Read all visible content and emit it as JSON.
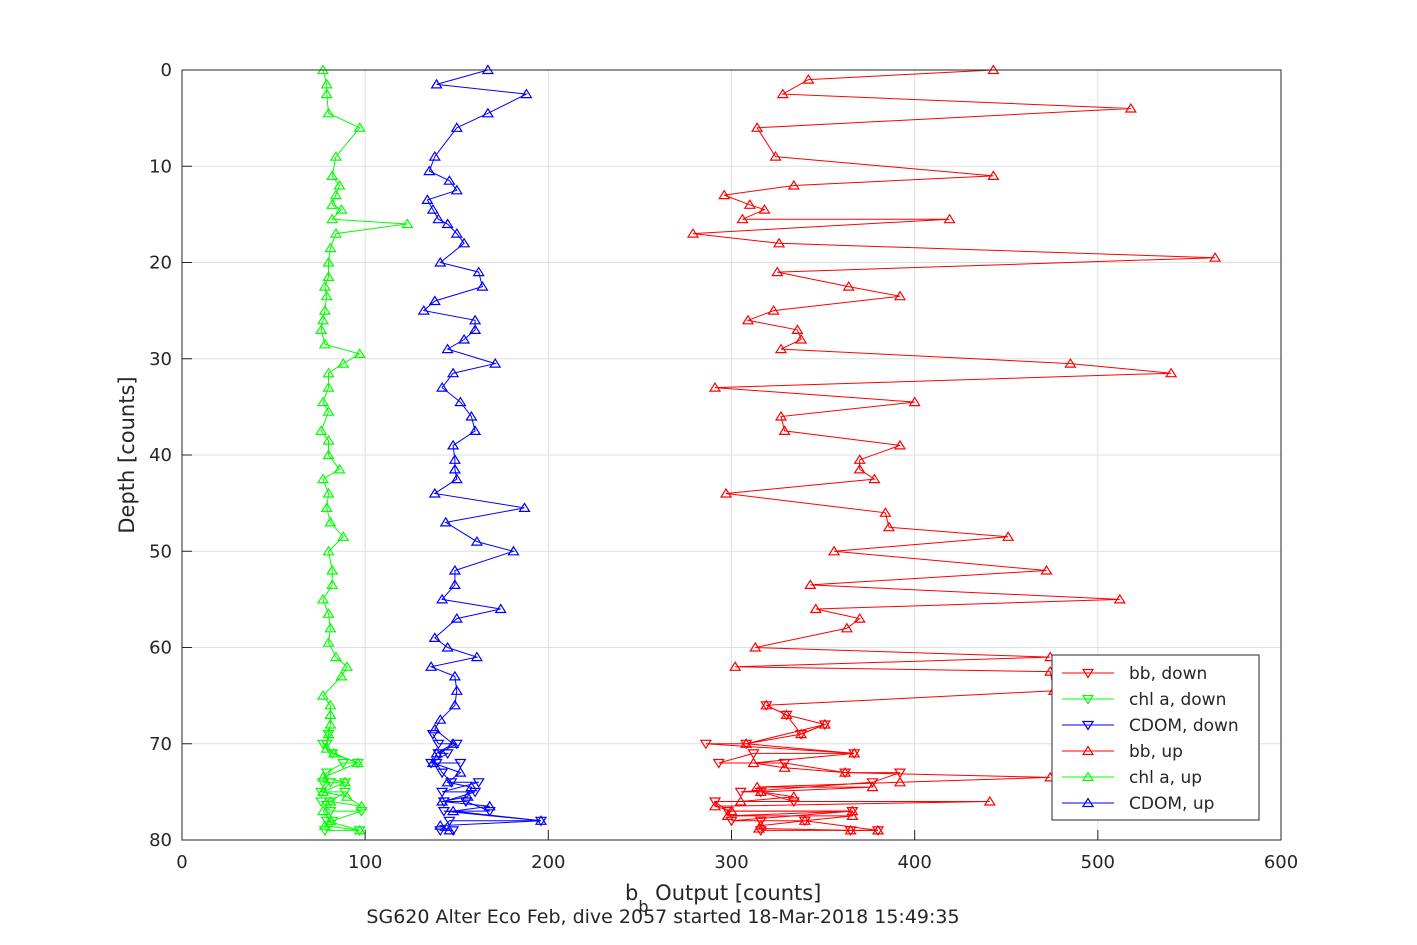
{
  "chart_data": {
    "type": "line",
    "xlabel_main": "b",
    "xlabel_sub": "b",
    "xlabel_rest": " Output [counts]",
    "ylabel": "Depth [counts]",
    "caption": "SG620 Alter Eco Feb, dive 2057 started 18-Mar-2018 15:49:35",
    "xlim": [
      0,
      600
    ],
    "ylim": [
      0,
      80
    ],
    "y_reversed": true,
    "grid": true,
    "legend_position": "bottom-right",
    "x_ticks": [
      "0",
      "100",
      "200",
      "300",
      "400",
      "500",
      "600"
    ],
    "y_ticks": [
      "0",
      "10",
      "20",
      "30",
      "40",
      "50",
      "60",
      "70",
      "80"
    ],
    "series": [
      {
        "name": "bb, down",
        "color": "#ff0000",
        "marker": "triangle-down",
        "points": [
          [
            316,
            79
          ],
          [
            365,
            79
          ],
          [
            380,
            79
          ],
          [
            340,
            78
          ],
          [
            316,
            78
          ],
          [
            300,
            78
          ],
          [
            366,
            77
          ],
          [
            298,
            77
          ],
          [
            291,
            76
          ],
          [
            334,
            76
          ],
          [
            316,
            75
          ],
          [
            305,
            75
          ],
          [
            377,
            74
          ],
          [
            392,
            73
          ],
          [
            362,
            73
          ],
          [
            329,
            72
          ],
          [
            293,
            72
          ],
          [
            312,
            71
          ],
          [
            367,
            71
          ],
          [
            286,
            70
          ],
          [
            308,
            70
          ],
          [
            351,
            68
          ],
          [
            338,
            69
          ],
          [
            330,
            67
          ],
          [
            319,
            66
          ]
        ]
      },
      {
        "name": "chl a, down",
        "color": "#00ff00",
        "marker": "triangle-down",
        "points": [
          [
            78,
            79
          ],
          [
            97,
            79
          ],
          [
            79,
            78
          ],
          [
            82,
            78
          ],
          [
            98,
            77
          ],
          [
            81,
            77
          ],
          [
            76,
            76
          ],
          [
            81,
            76
          ],
          [
            89,
            75
          ],
          [
            76,
            75
          ],
          [
            81,
            74
          ],
          [
            89,
            74
          ],
          [
            77,
            74
          ],
          [
            79,
            73
          ],
          [
            88,
            72
          ],
          [
            96,
            72
          ],
          [
            82,
            71
          ],
          [
            77,
            70
          ],
          [
            79,
            70
          ],
          [
            80,
            69
          ]
        ]
      },
      {
        "name": "CDOM, down",
        "color": "#0000ff",
        "marker": "triangle-down",
        "points": [
          [
            148,
            79
          ],
          [
            141,
            79
          ],
          [
            146,
            78
          ],
          [
            196,
            78
          ],
          [
            143,
            77
          ],
          [
            168,
            77
          ],
          [
            155,
            76
          ],
          [
            143,
            76
          ],
          [
            160,
            75
          ],
          [
            142,
            75
          ],
          [
            162,
            74
          ],
          [
            147,
            74
          ],
          [
            142,
            73
          ],
          [
            139,
            72
          ],
          [
            152,
            72
          ],
          [
            136,
            72
          ],
          [
            145,
            71
          ],
          [
            140,
            71
          ],
          [
            150,
            70
          ],
          [
            140,
            70
          ],
          [
            137,
            69
          ]
        ]
      },
      {
        "name": "bb, up",
        "color": "#ff0000",
        "marker": "triangle-up",
        "points": [
          [
            443,
            0
          ],
          [
            342,
            1
          ],
          [
            328,
            2.5
          ],
          [
            518,
            4
          ],
          [
            314,
            6
          ],
          [
            324,
            9
          ],
          [
            443,
            11
          ],
          [
            334,
            12
          ],
          [
            296,
            13
          ],
          [
            310,
            14
          ],
          [
            318,
            14.5
          ],
          [
            306,
            15.5
          ],
          [
            419,
            15.5
          ],
          [
            279,
            17
          ],
          [
            326,
            18
          ],
          [
            564,
            19.5
          ],
          [
            325,
            21
          ],
          [
            364,
            22.5
          ],
          [
            392,
            23.5
          ],
          [
            323,
            25
          ],
          [
            309,
            26
          ],
          [
            336,
            27
          ],
          [
            338,
            28
          ],
          [
            327,
            29
          ],
          [
            485,
            30.5
          ],
          [
            540,
            31.5
          ],
          [
            291,
            33
          ],
          [
            400,
            34.5
          ],
          [
            327,
            36
          ],
          [
            329,
            37.5
          ],
          [
            392,
            39
          ],
          [
            370,
            40.5
          ],
          [
            370,
            41.5
          ],
          [
            378,
            42.5
          ],
          [
            297,
            44
          ],
          [
            384,
            46
          ],
          [
            386,
            47.5
          ],
          [
            451,
            48.5
          ],
          [
            356,
            50
          ],
          [
            472,
            52
          ],
          [
            343,
            53.5
          ],
          [
            512,
            55
          ],
          [
            346,
            56
          ],
          [
            370,
            57
          ],
          [
            363,
            58
          ],
          [
            313,
            60
          ],
          [
            474,
            61
          ],
          [
            302,
            62
          ],
          [
            474,
            62.5
          ],
          [
            476,
            64.5
          ],
          [
            319,
            66
          ],
          [
            330,
            67
          ],
          [
            351,
            68
          ],
          [
            338,
            69
          ],
          [
            308,
            70
          ],
          [
            367,
            71
          ],
          [
            312,
            72
          ],
          [
            329,
            72.5
          ],
          [
            362,
            73
          ],
          [
            474,
            73.5
          ],
          [
            392,
            74
          ],
          [
            314,
            74.5
          ],
          [
            377,
            74.5
          ],
          [
            316,
            75
          ],
          [
            334,
            75.5
          ],
          [
            305,
            76
          ],
          [
            441,
            76
          ],
          [
            291,
            76.5
          ],
          [
            300,
            77
          ],
          [
            366,
            77
          ],
          [
            298,
            77.5
          ],
          [
            366,
            77.5
          ],
          [
            340,
            78
          ],
          [
            316,
            78.5
          ],
          [
            315,
            78.8
          ],
          [
            365,
            79
          ],
          [
            380,
            79
          ]
        ]
      },
      {
        "name": "chl a, up",
        "color": "#00ff00",
        "marker": "triangle-up",
        "points": [
          [
            77,
            0
          ],
          [
            79,
            1.5
          ],
          [
            79,
            2.5
          ],
          [
            80,
            4.5
          ],
          [
            97,
            6
          ],
          [
            84,
            9
          ],
          [
            82,
            11
          ],
          [
            86,
            12
          ],
          [
            84,
            13
          ],
          [
            82,
            14
          ],
          [
            87,
            14.5
          ],
          [
            82,
            15.5
          ],
          [
            123,
            16
          ],
          [
            84,
            17
          ],
          [
            81,
            18.5
          ],
          [
            80,
            20
          ],
          [
            80,
            21.5
          ],
          [
            78,
            22.5
          ],
          [
            79,
            23.5
          ],
          [
            78,
            25
          ],
          [
            77,
            26
          ],
          [
            76,
            27
          ],
          [
            78,
            28.5
          ],
          [
            97,
            29.5
          ],
          [
            88,
            30.5
          ],
          [
            80,
            31.5
          ],
          [
            80,
            33
          ],
          [
            77,
            34.5
          ],
          [
            80,
            35.5
          ],
          [
            76,
            37.5
          ],
          [
            80,
            38.5
          ],
          [
            80,
            40
          ],
          [
            86,
            41.5
          ],
          [
            77,
            42.5
          ],
          [
            80,
            44
          ],
          [
            79,
            45.5
          ],
          [
            81,
            47
          ],
          [
            88,
            48.5
          ],
          [
            80,
            50
          ],
          [
            82,
            52
          ],
          [
            82,
            53.5
          ],
          [
            77,
            55
          ],
          [
            80,
            56.5
          ],
          [
            81,
            58
          ],
          [
            80,
            59.5
          ],
          [
            84,
            61
          ],
          [
            90,
            62
          ],
          [
            87,
            63
          ],
          [
            77,
            65
          ],
          [
            81,
            66
          ],
          [
            81,
            67
          ],
          [
            81,
            68
          ],
          [
            80,
            69
          ],
          [
            79,
            70.5
          ],
          [
            83,
            71
          ],
          [
            96,
            72
          ],
          [
            77,
            73.5
          ],
          [
            89,
            74
          ],
          [
            77,
            75
          ],
          [
            90,
            75.5
          ],
          [
            98,
            76.5
          ],
          [
            81,
            76
          ],
          [
            77,
            77
          ],
          [
            81,
            78
          ],
          [
            78,
            78.5
          ],
          [
            97,
            79
          ]
        ]
      },
      {
        "name": "CDOM, up",
        "color": "#0000ff",
        "marker": "triangle-up",
        "points": [
          [
            167,
            0
          ],
          [
            139,
            1.5
          ],
          [
            188,
            2.5
          ],
          [
            167,
            4.5
          ],
          [
            150,
            6
          ],
          [
            138,
            9
          ],
          [
            135,
            10.5
          ],
          [
            146,
            11.5
          ],
          [
            150,
            12.5
          ],
          [
            134,
            13.5
          ],
          [
            137,
            14.5
          ],
          [
            140,
            15.5
          ],
          [
            145,
            16
          ],
          [
            150,
            17
          ],
          [
            154,
            18
          ],
          [
            141,
            20
          ],
          [
            162,
            21
          ],
          [
            164,
            22.5
          ],
          [
            138,
            24
          ],
          [
            132,
            25
          ],
          [
            160,
            26
          ],
          [
            160,
            27
          ],
          [
            154,
            28
          ],
          [
            145,
            29
          ],
          [
            171,
            30.5
          ],
          [
            148,
            31.5
          ],
          [
            142,
            33
          ],
          [
            152,
            34.5
          ],
          [
            158,
            36
          ],
          [
            160,
            37.5
          ],
          [
            148,
            39
          ],
          [
            149,
            40.5
          ],
          [
            149,
            41.5
          ],
          [
            150,
            42.5
          ],
          [
            138,
            44
          ],
          [
            187,
            45.5
          ],
          [
            144,
            47
          ],
          [
            161,
            49
          ],
          [
            181,
            50
          ],
          [
            149,
            52
          ],
          [
            149,
            53.5
          ],
          [
            142,
            55
          ],
          [
            174,
            56
          ],
          [
            150,
            57
          ],
          [
            138,
            59
          ],
          [
            145,
            60
          ],
          [
            161,
            61
          ],
          [
            136,
            62
          ],
          [
            149,
            63
          ],
          [
            150,
            64.5
          ],
          [
            149,
            66
          ],
          [
            141,
            67.5
          ],
          [
            138,
            68.5
          ],
          [
            148,
            70
          ],
          [
            139,
            71
          ],
          [
            137,
            72
          ],
          [
            152,
            73
          ],
          [
            145,
            74
          ],
          [
            158,
            74.5
          ],
          [
            156,
            75.5
          ],
          [
            142,
            76
          ],
          [
            168,
            76.5
          ],
          [
            148,
            77
          ],
          [
            196,
            78
          ],
          [
            141,
            78.5
          ],
          [
            146,
            79
          ]
        ]
      }
    ]
  }
}
